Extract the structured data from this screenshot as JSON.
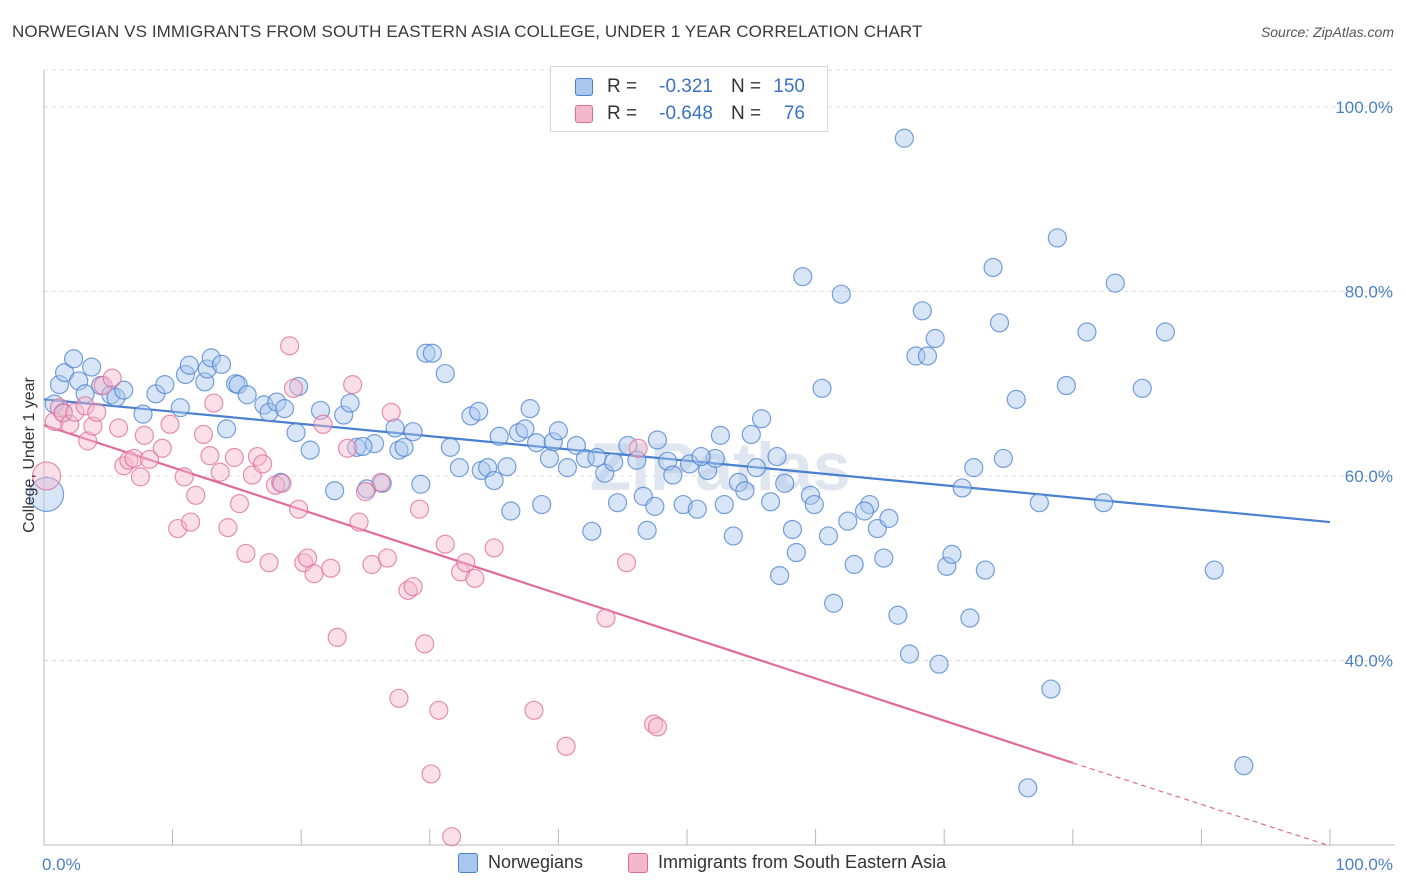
{
  "title": "NORWEGIAN VS IMMIGRANTS FROM SOUTH EASTERN ASIA COLLEGE, UNDER 1 YEAR CORRELATION CHART",
  "source": "Source: ZipAtlas.com",
  "watermark": "ZIPatlas",
  "colors": {
    "blue": "#4a80d0",
    "blue_fill": "#a9c6ec",
    "pink": "#e06b97",
    "pink_fill": "#f4b8cc",
    "tick_text": "#4a7fc8"
  },
  "legend": {
    "rows": [
      {
        "r_label": "R =",
        "r_value": "-0.321",
        "n_label": "N =",
        "n_value": "150"
      },
      {
        "r_label": "R =",
        "r_value": "-0.648",
        "n_label": "N =",
        "n_value": "76"
      }
    ]
  },
  "bottom_legend": {
    "series_a": "Norwegians",
    "series_b": "Immigrants from South Eastern Asia"
  },
  "chart_data": {
    "type": "scatter",
    "title": "NORWEGIAN VS IMMIGRANTS FROM SOUTH EASTERN ASIA COLLEGE, UNDER 1 YEAR CORRELATION CHART",
    "xlabel": "",
    "ylabel": "College, Under 1 year",
    "xlim": [
      0,
      100
    ],
    "ylim": [
      20,
      104
    ],
    "x_tick_labels": [
      "0.0%",
      "100.0%"
    ],
    "y_ticks": [
      40,
      60,
      80,
      100
    ],
    "y_tick_labels": [
      "40.0%",
      "60.0%",
      "80.0%",
      "100.0%"
    ],
    "grid": true,
    "legend_position": "top-center",
    "series": [
      {
        "name": "Norwegians",
        "color": "#4a80d0",
        "trend": {
          "x": [
            0,
            100
          ],
          "y": [
            68.3,
            55.0
          ]
        },
        "points": [
          [
            0.2,
            58.0
          ],
          [
            0.8,
            67.8
          ],
          [
            1.2,
            69.9
          ],
          [
            1.6,
            71.2
          ],
          [
            2.3,
            72.7
          ],
          [
            2.7,
            70.3
          ],
          [
            3.2,
            68.9
          ],
          [
            3.7,
            71.8
          ],
          [
            4.4,
            69.8
          ],
          [
            5.2,
            68.8
          ],
          [
            5.6,
            68.5
          ],
          [
            6.2,
            69.3
          ],
          [
            7.7,
            66.7
          ],
          [
            8.7,
            68.9
          ],
          [
            9.4,
            69.9
          ],
          [
            10.6,
            67.4
          ],
          [
            11.0,
            71.0
          ],
          [
            11.3,
            72.0
          ],
          [
            12.5,
            70.2
          ],
          [
            12.7,
            71.6
          ],
          [
            13.0,
            72.8
          ],
          [
            13.8,
            72.1
          ],
          [
            14.2,
            65.1
          ],
          [
            14.9,
            70.0
          ],
          [
            15.1,
            69.9
          ],
          [
            15.8,
            68.8
          ],
          [
            17.1,
            67.7
          ],
          [
            17.5,
            66.9
          ],
          [
            18.1,
            68.0
          ],
          [
            18.4,
            59.3
          ],
          [
            18.7,
            67.3
          ],
          [
            19.6,
            64.7
          ],
          [
            19.8,
            69.7
          ],
          [
            20.7,
            62.8
          ],
          [
            21.5,
            67.1
          ],
          [
            22.6,
            58.4
          ],
          [
            23.3,
            66.6
          ],
          [
            23.8,
            67.9
          ],
          [
            24.3,
            63.1
          ],
          [
            25.1,
            58.6
          ],
          [
            25.7,
            63.5
          ],
          [
            26.3,
            59.2
          ],
          [
            27.3,
            65.2
          ],
          [
            27.6,
            62.8
          ],
          [
            28.0,
            63.1
          ],
          [
            28.7,
            64.8
          ],
          [
            29.3,
            59.1
          ],
          [
            29.7,
            73.3
          ],
          [
            30.2,
            73.3
          ],
          [
            31.2,
            71.1
          ],
          [
            31.6,
            63.1
          ],
          [
            32.3,
            60.9
          ],
          [
            33.2,
            66.5
          ],
          [
            34.0,
            60.6
          ],
          [
            34.5,
            60.9
          ],
          [
            35.0,
            59.5
          ],
          [
            35.4,
            64.3
          ],
          [
            36.3,
            56.2
          ],
          [
            36.9,
            64.7
          ],
          [
            37.4,
            65.1
          ],
          [
            37.8,
            67.3
          ],
          [
            38.3,
            63.6
          ],
          [
            38.7,
            56.9
          ],
          [
            39.6,
            63.7
          ],
          [
            40.0,
            64.9
          ],
          [
            40.7,
            60.9
          ],
          [
            41.4,
            63.3
          ],
          [
            42.1,
            61.9
          ],
          [
            42.6,
            54.0
          ],
          [
            43.0,
            62.0
          ],
          [
            43.6,
            60.3
          ],
          [
            44.3,
            61.5
          ],
          [
            44.6,
            57.1
          ],
          [
            45.4,
            63.3
          ],
          [
            46.1,
            61.7
          ],
          [
            46.6,
            57.8
          ],
          [
            46.9,
            54.1
          ],
          [
            47.5,
            56.7
          ],
          [
            48.5,
            61.6
          ],
          [
            48.9,
            60.1
          ],
          [
            49.7,
            56.9
          ],
          [
            50.2,
            61.3
          ],
          [
            50.8,
            56.4
          ],
          [
            51.6,
            60.6
          ],
          [
            52.2,
            61.9
          ],
          [
            52.6,
            64.4
          ],
          [
            52.9,
            56.9
          ],
          [
            53.6,
            53.5
          ],
          [
            54.0,
            59.3
          ],
          [
            54.5,
            58.4
          ],
          [
            55.0,
            64.5
          ],
          [
            55.4,
            60.9
          ],
          [
            55.8,
            66.2
          ],
          [
            56.5,
            57.2
          ],
          [
            57.2,
            49.2
          ],
          [
            57.6,
            59.2
          ],
          [
            58.2,
            54.2
          ],
          [
            58.5,
            51.7
          ],
          [
            59.0,
            81.6
          ],
          [
            59.6,
            57.9
          ],
          [
            59.9,
            56.9
          ],
          [
            60.5,
            69.5
          ],
          [
            61.0,
            53.5
          ],
          [
            61.4,
            46.2
          ],
          [
            62.0,
            79.7
          ],
          [
            62.5,
            55.1
          ],
          [
            63.0,
            50.4
          ],
          [
            64.2,
            56.9
          ],
          [
            64.8,
            54.3
          ],
          [
            65.3,
            51.1
          ],
          [
            65.7,
            55.4
          ],
          [
            66.4,
            44.9
          ],
          [
            66.9,
            96.6
          ],
          [
            67.3,
            40.7
          ],
          [
            67.8,
            73.0
          ],
          [
            68.3,
            77.9
          ],
          [
            68.7,
            73.0
          ],
          [
            69.3,
            74.9
          ],
          [
            69.6,
            39.6
          ],
          [
            70.2,
            50.2
          ],
          [
            70.6,
            51.5
          ],
          [
            71.4,
            58.7
          ],
          [
            72.0,
            44.6
          ],
          [
            72.3,
            60.9
          ],
          [
            73.2,
            49.8
          ],
          [
            73.8,
            82.6
          ],
          [
            74.3,
            76.6
          ],
          [
            74.6,
            61.9
          ],
          [
            75.6,
            68.3
          ],
          [
            76.5,
            26.2
          ],
          [
            77.4,
            57.1
          ],
          [
            78.3,
            36.9
          ],
          [
            78.8,
            85.8
          ],
          [
            79.5,
            69.8
          ],
          [
            81.1,
            75.6
          ],
          [
            82.4,
            57.1
          ],
          [
            83.3,
            80.9
          ],
          [
            85.4,
            69.5
          ],
          [
            87.2,
            75.6
          ],
          [
            91.0,
            49.8
          ],
          [
            93.3,
            28.6
          ],
          [
            1.5,
            66.9
          ],
          [
            24.8,
            63.2
          ],
          [
            33.8,
            67.0
          ],
          [
            39.3,
            61.9
          ],
          [
            47.7,
            63.9
          ],
          [
            51.1,
            62.1
          ],
          [
            63.8,
            56.2
          ],
          [
            36.0,
            61.0
          ],
          [
            57.0,
            62.1
          ]
        ]
      },
      {
        "name": "Immigrants from South Eastern Asia",
        "color": "#e06b97",
        "trend": {
          "x": [
            0,
            80
          ],
          "y": [
            65.5,
            28.9
          ]
        },
        "trend_dashed": {
          "x": [
            80,
            100
          ],
          "y": [
            28.9,
            19.9
          ]
        },
        "points": [
          [
            0.2,
            60.0
          ],
          [
            0.8,
            65.9
          ],
          [
            1.2,
            67.4
          ],
          [
            1.5,
            66.8
          ],
          [
            2.0,
            65.6
          ],
          [
            2.4,
            66.9
          ],
          [
            3.2,
            67.6
          ],
          [
            3.4,
            63.8
          ],
          [
            3.8,
            65.4
          ],
          [
            4.1,
            66.9
          ],
          [
            4.6,
            69.8
          ],
          [
            5.3,
            70.6
          ],
          [
            5.8,
            65.2
          ],
          [
            6.2,
            61.1
          ],
          [
            6.6,
            61.7
          ],
          [
            7.0,
            61.9
          ],
          [
            7.5,
            59.9
          ],
          [
            7.8,
            64.4
          ],
          [
            8.2,
            61.8
          ],
          [
            9.2,
            63.0
          ],
          [
            9.8,
            65.6
          ],
          [
            10.4,
            54.3
          ],
          [
            10.9,
            59.9
          ],
          [
            11.4,
            55.0
          ],
          [
            11.8,
            57.9
          ],
          [
            12.4,
            64.5
          ],
          [
            12.9,
            62.2
          ],
          [
            13.2,
            67.9
          ],
          [
            13.7,
            60.4
          ],
          [
            14.3,
            54.4
          ],
          [
            14.8,
            62.0
          ],
          [
            15.2,
            57.0
          ],
          [
            15.7,
            51.6
          ],
          [
            16.2,
            60.1
          ],
          [
            16.6,
            62.1
          ],
          [
            17.0,
            61.3
          ],
          [
            17.5,
            50.6
          ],
          [
            18.0,
            59.0
          ],
          [
            18.5,
            59.2
          ],
          [
            19.1,
            74.1
          ],
          [
            19.4,
            69.5
          ],
          [
            19.8,
            56.4
          ],
          [
            20.2,
            50.6
          ],
          [
            20.5,
            51.1
          ],
          [
            21.0,
            49.4
          ],
          [
            21.7,
            65.6
          ],
          [
            22.3,
            50.0
          ],
          [
            22.8,
            42.5
          ],
          [
            23.6,
            63.0
          ],
          [
            24.0,
            69.9
          ],
          [
            24.5,
            55.0
          ],
          [
            25.0,
            58.3
          ],
          [
            25.5,
            50.4
          ],
          [
            26.2,
            59.3
          ],
          [
            26.7,
            51.1
          ],
          [
            27.0,
            66.9
          ],
          [
            27.6,
            35.9
          ],
          [
            28.3,
            47.6
          ],
          [
            28.7,
            48.0
          ],
          [
            29.2,
            56.4
          ],
          [
            29.6,
            41.8
          ],
          [
            30.1,
            27.7
          ],
          [
            30.7,
            34.6
          ],
          [
            31.2,
            52.6
          ],
          [
            31.7,
            20.9
          ],
          [
            32.4,
            49.6
          ],
          [
            32.8,
            50.6
          ],
          [
            33.5,
            48.9
          ],
          [
            35.0,
            52.2
          ],
          [
            38.1,
            34.6
          ],
          [
            40.6,
            30.7
          ],
          [
            43.7,
            44.6
          ],
          [
            45.3,
            50.6
          ],
          [
            46.2,
            63.0
          ],
          [
            47.4,
            33.1
          ],
          [
            47.7,
            32.8
          ]
        ]
      }
    ]
  }
}
